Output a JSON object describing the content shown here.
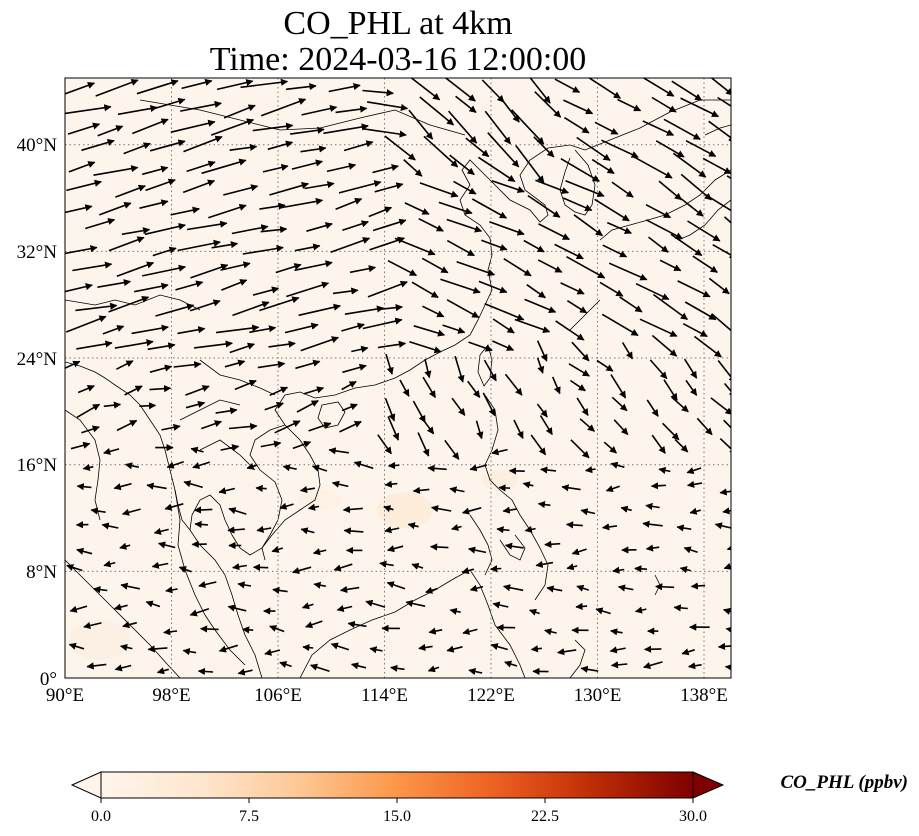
{
  "title": {
    "line1": "CO_PHL at 4km",
    "line2": "Time: 2024-03-16 12:00:00"
  },
  "map": {
    "projection": "PlateCarree",
    "lon_range": [
      90,
      140.5
    ],
    "lat_range": [
      0,
      45
    ],
    "x_ticks": [
      "90°E",
      "98°E",
      "106°E",
      "114°E",
      "122°E",
      "130°E",
      "138°E"
    ],
    "y_ticks": [
      "0°",
      "8°N",
      "16°N",
      "24°N",
      "32°N",
      "40°N"
    ],
    "gridlines": true,
    "field_color": "#fdf5eb",
    "coastline_color": "#000000"
  },
  "colorbar": {
    "label": "CO_PHL (ppbv)",
    "ticks": [
      "0.0",
      "7.5",
      "15.0",
      "22.5",
      "30.0"
    ],
    "range": [
      0,
      30
    ],
    "extend": "both",
    "colors": [
      "#fff5eb",
      "#fdd8b2",
      "#fdab67",
      "#f4701f",
      "#d84801",
      "#a33403",
      "#7f0000"
    ]
  }
}
